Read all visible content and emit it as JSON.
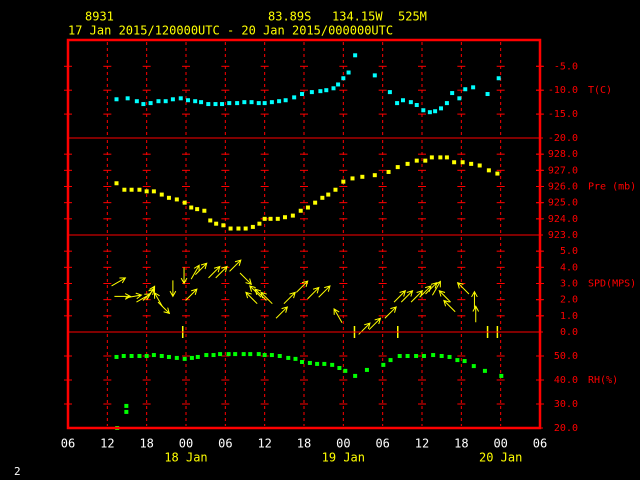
{
  "header": {
    "station": "8931",
    "latitude": "83.89S",
    "longitude": "134.15W",
    "elevation": "525M",
    "period": "17 Jan 2015/120000UTC - 20 Jan 2015/000000UTC",
    "page": "2"
  },
  "chart_data": [
    {
      "type": "scatter",
      "ylabel": "T(C)",
      "color": "#00ffff",
      "ylim": [
        -20,
        0.5
      ],
      "yticks": [
        {
          "value": -20,
          "label": "-20.0"
        },
        {
          "value": -15,
          "label": "-15.0"
        },
        {
          "value": -10,
          "label": "-10.0"
        },
        {
          "value": -5,
          "label": "-5.0"
        }
      ],
      "x": [
        13.4,
        15.1,
        16.5,
        17.5,
        18.6,
        19.8,
        20.9,
        22.0,
        23.2,
        24.3,
        25.4,
        26.3,
        27.4,
        28.5,
        29.5,
        30.6,
        31.8,
        32.9,
        34.0,
        35.1,
        36.0,
        37.1,
        38.2,
        39.2,
        40.5,
        41.7,
        43.2,
        44.5,
        45.4,
        46.5,
        47.2,
        48.0,
        48.8,
        49.8,
        52.8,
        55.1,
        56.2,
        57.1,
        58.3,
        59.2,
        60.2,
        61.2,
        62.0,
        62.9,
        63.8,
        64.6,
        65.7,
        66.6,
        67.8,
        70.0,
        71.7
      ],
      "values": [
        -11.9,
        -11.7,
        -12.3,
        -12.9,
        -12.7,
        -12.3,
        -12.3,
        -11.9,
        -11.7,
        -12.1,
        -12.3,
        -12.5,
        -12.9,
        -12.9,
        -12.9,
        -12.7,
        -12.7,
        -12.5,
        -12.5,
        -12.7,
        -12.7,
        -12.5,
        -12.3,
        -12.1,
        -11.5,
        -10.8,
        -10.4,
        -10.2,
        -10.0,
        -9.6,
        -8.8,
        -7.5,
        -6.3,
        -2.7,
        -6.9,
        -10.4,
        -12.7,
        -12.1,
        -12.5,
        -13.1,
        -14.2,
        -14.6,
        -14.4,
        -13.8,
        -12.7,
        -10.6,
        -11.7,
        -9.8,
        -9.4,
        -10.8,
        -7.5
      ]
    },
    {
      "type": "scatter",
      "ylabel": "Pre (mb)",
      "color": "#ffff00",
      "ylim": [
        923,
        929
      ],
      "yticks": [
        {
          "value": 923,
          "label": "923.0"
        },
        {
          "value": 924,
          "label": "924.0"
        },
        {
          "value": 925,
          "label": "925.0"
        },
        {
          "value": 926,
          "label": "926.0"
        },
        {
          "value": 927,
          "label": "927.0"
        },
        {
          "value": 928,
          "label": "928.0"
        }
      ],
      "x": [
        13.4,
        14.6,
        15.7,
        16.9,
        18.0,
        19.1,
        20.3,
        21.4,
        22.6,
        23.8,
        24.8,
        25.7,
        26.8,
        27.7,
        28.6,
        29.7,
        30.8,
        32.0,
        33.1,
        34.2,
        35.2,
        36.0,
        36.9,
        38.0,
        39.1,
        40.3,
        41.5,
        42.6,
        43.7,
        44.8,
        45.7,
        46.8,
        48.0,
        49.4,
        50.9,
        52.8,
        54.9,
        56.3,
        57.8,
        59.2,
        60.5,
        61.5,
        62.8,
        63.8,
        64.9,
        66.2,
        67.5,
        68.8,
        70.2,
        71.5
      ],
      "values": [
        926.2,
        925.8,
        925.8,
        925.8,
        925.7,
        925.7,
        925.5,
        925.3,
        925.2,
        925.0,
        924.7,
        924.6,
        924.5,
        923.9,
        923.7,
        923.6,
        923.4,
        923.4,
        923.4,
        923.5,
        923.7,
        924.0,
        924.0,
        924.0,
        924.1,
        924.2,
        924.5,
        924.7,
        925.0,
        925.3,
        925.5,
        925.8,
        926.3,
        926.5,
        926.6,
        926.7,
        926.9,
        927.2,
        927.4,
        927.6,
        927.6,
        927.8,
        927.8,
        927.8,
        927.5,
        927.5,
        927.4,
        927.3,
        927.0,
        926.8
      ]
    },
    {
      "type": "wind",
      "ylabel": "SPD(MPS)",
      "color": "#ffff00",
      "ylim": [
        0,
        6
      ],
      "yticks": [
        {
          "value": 0,
          "label": "0.0"
        },
        {
          "value": 1,
          "label": "1.0"
        },
        {
          "value": 2,
          "label": "2.0"
        },
        {
          "value": 3,
          "label": "3.0"
        },
        {
          "value": 4,
          "label": "4.0"
        },
        {
          "value": 5,
          "label": "5.0"
        }
      ],
      "x": [
        13.7,
        14.3,
        16.0,
        17.5,
        18.3,
        18.6,
        19.8,
        20.6,
        22.0,
        23.5,
        23.7,
        24.8,
        25.4,
        26.3,
        28.3,
        29.4,
        31.5,
        33.1,
        34.0,
        34.6,
        35.4,
        36.3,
        38.6,
        39.8,
        41.7,
        43.4,
        45.1,
        47.2,
        49.7,
        51.2,
        52.8,
        55.2,
        56.3,
        56.6,
        57.7,
        59.2,
        60.5,
        61.4,
        62.2,
        63.5,
        64.2,
        66.3,
        68.0,
        68.2,
        70.0,
        71.5
      ],
      "values": [
        3.1,
        2.2,
        2.2,
        2.1,
        2.3,
        2.4,
        2.0,
        1.5,
        2.7,
        0,
        3.5,
        2.3,
        3.7,
        3.9,
        3.7,
        3.7,
        4.1,
        3.3,
        2.1,
        2.5,
        2.3,
        2.1,
        1.2,
        2.1,
        2.8,
        2.4,
        2.5,
        1.0,
        0,
        0.2,
        0.5,
        1.2,
        0,
        2.2,
        2.2,
        2.2,
        2.5,
        2.7,
        2.7,
        2.2,
        1.6,
        2.7,
        2.0,
        1.1,
        0,
        0
      ],
      "directions": [
        60,
        90,
        80,
        60,
        45,
        30,
        330,
        135,
        180,
        0,
        180,
        45,
        30,
        45,
        45,
        45,
        45,
        135,
        315,
        315,
        315,
        315,
        45,
        45,
        45,
        45,
        45,
        330,
        0,
        45,
        45,
        45,
        0,
        45,
        45,
        45,
        45,
        45,
        30,
        315,
        315,
        315,
        0,
        0,
        0,
        0
      ]
    },
    {
      "type": "scatter",
      "ylabel": "RH(%)",
      "color": "#00ff00",
      "ylim": [
        20,
        60
      ],
      "yticks": [
        {
          "value": 20,
          "label": "20.0"
        },
        {
          "value": 30,
          "label": "30.0"
        },
        {
          "value": 40,
          "label": "40.0"
        },
        {
          "value": 50,
          "label": "50.0"
        }
      ],
      "xlim": [
        6,
        78
      ],
      "xticks": [
        {
          "value": 6,
          "label": "06"
        },
        {
          "value": 12,
          "label": "12"
        },
        {
          "value": 18,
          "label": "18"
        },
        {
          "value": 24,
          "label": "00"
        },
        {
          "value": 30,
          "label": "06"
        },
        {
          "value": 36,
          "label": "12"
        },
        {
          "value": 42,
          "label": "18"
        },
        {
          "value": 48,
          "label": "00"
        },
        {
          "value": 54,
          "label": "06"
        },
        {
          "value": 60,
          "label": "12"
        },
        {
          "value": 66,
          "label": "18"
        },
        {
          "value": 72,
          "label": "00"
        },
        {
          "value": 78,
          "label": "06"
        }
      ],
      "day_labels": [
        {
          "value": 24,
          "label": "18 Jan"
        },
        {
          "value": 48,
          "label": "19 Jan"
        },
        {
          "value": 72,
          "label": "20 Jan"
        }
      ],
      "x": [
        13.4,
        13.5,
        14.5,
        14.9,
        14.9,
        15.7,
        16.9,
        18.0,
        19.1,
        20.3,
        21.4,
        22.6,
        23.8,
        24.9,
        25.8,
        27.1,
        28.2,
        29.2,
        30.5,
        31.5,
        32.8,
        33.8,
        35.1,
        36.0,
        37.1,
        38.3,
        39.6,
        40.7,
        41.7,
        42.9,
        44.0,
        45.1,
        46.3,
        47.4,
        48.3,
        49.8,
        51.6,
        54.1,
        55.2,
        56.6,
        57.8,
        59.1,
        60.3,
        61.7,
        63.0,
        64.2,
        65.4,
        66.5,
        67.9,
        69.6,
        72.1
      ],
      "values": [
        49.6,
        20.0,
        50.0,
        29.2,
        26.7,
        50.0,
        50.0,
        50.0,
        50.4,
        50.0,
        49.6,
        49.2,
        48.8,
        49.2,
        49.6,
        50.4,
        50.4,
        50.8,
        50.8,
        50.8,
        50.8,
        50.8,
        50.8,
        50.4,
        50.4,
        50.0,
        49.2,
        48.8,
        47.5,
        47.1,
        46.7,
        46.7,
        46.3,
        45.0,
        43.8,
        41.7,
        44.2,
        46.3,
        48.3,
        50.0,
        50.0,
        50.0,
        50.0,
        50.4,
        50.0,
        49.6,
        48.3,
        47.9,
        45.8,
        43.8,
        41.7
      ]
    }
  ]
}
